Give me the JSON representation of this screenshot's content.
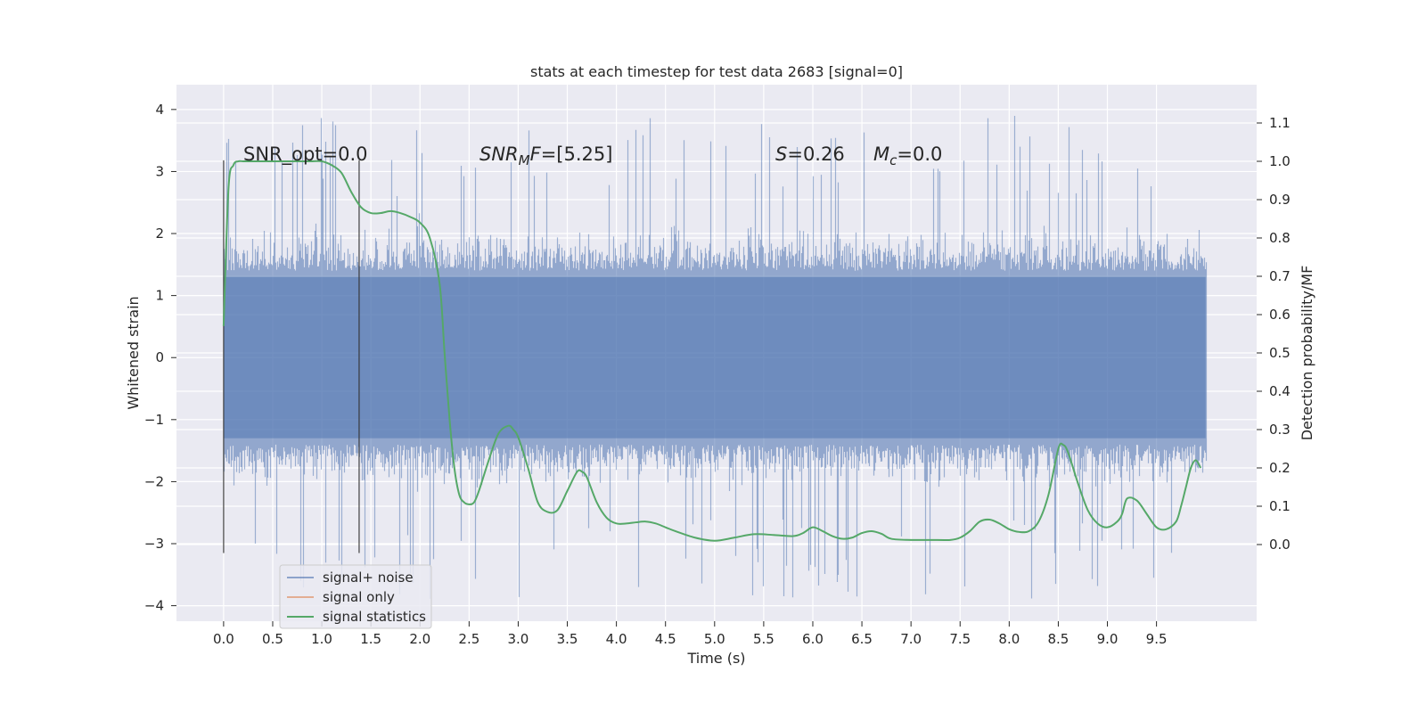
{
  "chart_data": {
    "type": "line",
    "title": "stats at each timestep for test data 2683 [signal=0]",
    "xlabel": "Time (s)",
    "ylabel": "Whitened strain",
    "y2label": "Detection probability/MF",
    "xlim": [
      -0.48,
      10.52
    ],
    "ylim": [
      -4.25,
      4.4
    ],
    "y2lim": [
      -0.2,
      1.2
    ],
    "xticks": [
      "0.0",
      "0.5",
      "1.0",
      "1.5",
      "2.0",
      "2.5",
      "3.0",
      "3.5",
      "4.0",
      "4.5",
      "5.0",
      "5.5",
      "6.0",
      "6.5",
      "7.0",
      "7.5",
      "8.0",
      "8.5",
      "9.0",
      "9.5"
    ],
    "yticks": [
      "4",
      "3",
      "2",
      "1",
      "0",
      "−1",
      "−2",
      "−3",
      "−4"
    ],
    "y2ticks": [
      "1.1",
      "1.0",
      "0.9",
      "0.8",
      "0.7",
      "0.6",
      "0.5",
      "0.4",
      "0.3",
      "0.2",
      "0.1",
      "0.0"
    ],
    "grid": true,
    "legend_position": "lower-left",
    "colors": {
      "background": "#eaeaf2",
      "grid": "#ffffff",
      "signal_noise": "#4c72b0",
      "signal_only": "#dd8452",
      "statistics": "#55a868",
      "vline": "#333333"
    },
    "vlines": [
      0.0,
      1.38
    ],
    "annotations": {
      "snr_opt": "SNR_opt=0.0",
      "snr_mf_italic": "SNR",
      "snr_mf_sub": "M",
      "snr_mf_f": "F",
      "snr_mf_val": "=[5.25]",
      "s_italic": "S",
      "s_val": "=0.26",
      "mc_italic": "M",
      "mc_sub": "c",
      "mc_val": "=0.0"
    },
    "series": [
      {
        "name": "signal+ noise",
        "kind": "noise",
        "x_range": [
          0.0,
          10.0
        ],
        "envelope_core": 1.3,
        "spikes_max": 4.05,
        "spikes_min": -4.05
      },
      {
        "name": "signal only",
        "kind": "flat",
        "values": []
      },
      {
        "name": "signal statistics",
        "kind": "line",
        "x": [
          0.0,
          0.05,
          0.1,
          0.15,
          0.2,
          0.3,
          0.5,
          0.7,
          0.9,
          1.0,
          1.1,
          1.2,
          1.3,
          1.4,
          1.5,
          1.6,
          1.7,
          1.8,
          1.9,
          2.0,
          2.1,
          2.2,
          2.25,
          2.3,
          2.35,
          2.4,
          2.45,
          2.5,
          2.55,
          2.6,
          2.7,
          2.8,
          2.9,
          2.95,
          3.0,
          3.1,
          3.2,
          3.3,
          3.4,
          3.5,
          3.6,
          3.65,
          3.7,
          3.8,
          3.9,
          4.0,
          4.1,
          4.2,
          4.3,
          4.4,
          4.5,
          4.6,
          4.8,
          5.0,
          5.2,
          5.4,
          5.6,
          5.8,
          5.9,
          6.0,
          6.1,
          6.2,
          6.3,
          6.4,
          6.5,
          6.6,
          6.7,
          6.8,
          7.0,
          7.2,
          7.4,
          7.5,
          7.6,
          7.7,
          7.8,
          7.9,
          8.0,
          8.1,
          8.2,
          8.3,
          8.4,
          8.5,
          8.55,
          8.6,
          8.7,
          8.8,
          8.9,
          9.0,
          9.1,
          9.15,
          9.2,
          9.3,
          9.4,
          9.5,
          9.6,
          9.7,
          9.75,
          9.8,
          9.85,
          9.9,
          9.95
        ],
        "values": [
          0.57,
          0.93,
          0.99,
          1.0,
          1.0,
          1.0,
          1.0,
          1.0,
          1.0,
          1.0,
          0.99,
          0.97,
          0.92,
          0.88,
          0.865,
          0.865,
          0.87,
          0.865,
          0.855,
          0.84,
          0.8,
          0.68,
          0.5,
          0.33,
          0.2,
          0.13,
          0.11,
          0.105,
          0.11,
          0.14,
          0.22,
          0.29,
          0.31,
          0.3,
          0.28,
          0.2,
          0.11,
          0.085,
          0.09,
          0.14,
          0.19,
          0.19,
          0.175,
          0.11,
          0.07,
          0.055,
          0.055,
          0.058,
          0.06,
          0.055,
          0.045,
          0.035,
          0.018,
          0.01,
          0.018,
          0.027,
          0.025,
          0.022,
          0.03,
          0.045,
          0.035,
          0.022,
          0.015,
          0.018,
          0.03,
          0.035,
          0.028,
          0.015,
          0.012,
          0.012,
          0.012,
          0.018,
          0.035,
          0.06,
          0.065,
          0.055,
          0.04,
          0.033,
          0.035,
          0.06,
          0.13,
          0.25,
          0.26,
          0.24,
          0.16,
          0.09,
          0.055,
          0.045,
          0.06,
          0.08,
          0.12,
          0.115,
          0.08,
          0.045,
          0.04,
          0.06,
          0.1,
          0.15,
          0.2,
          0.22,
          0.2
        ]
      }
    ]
  }
}
